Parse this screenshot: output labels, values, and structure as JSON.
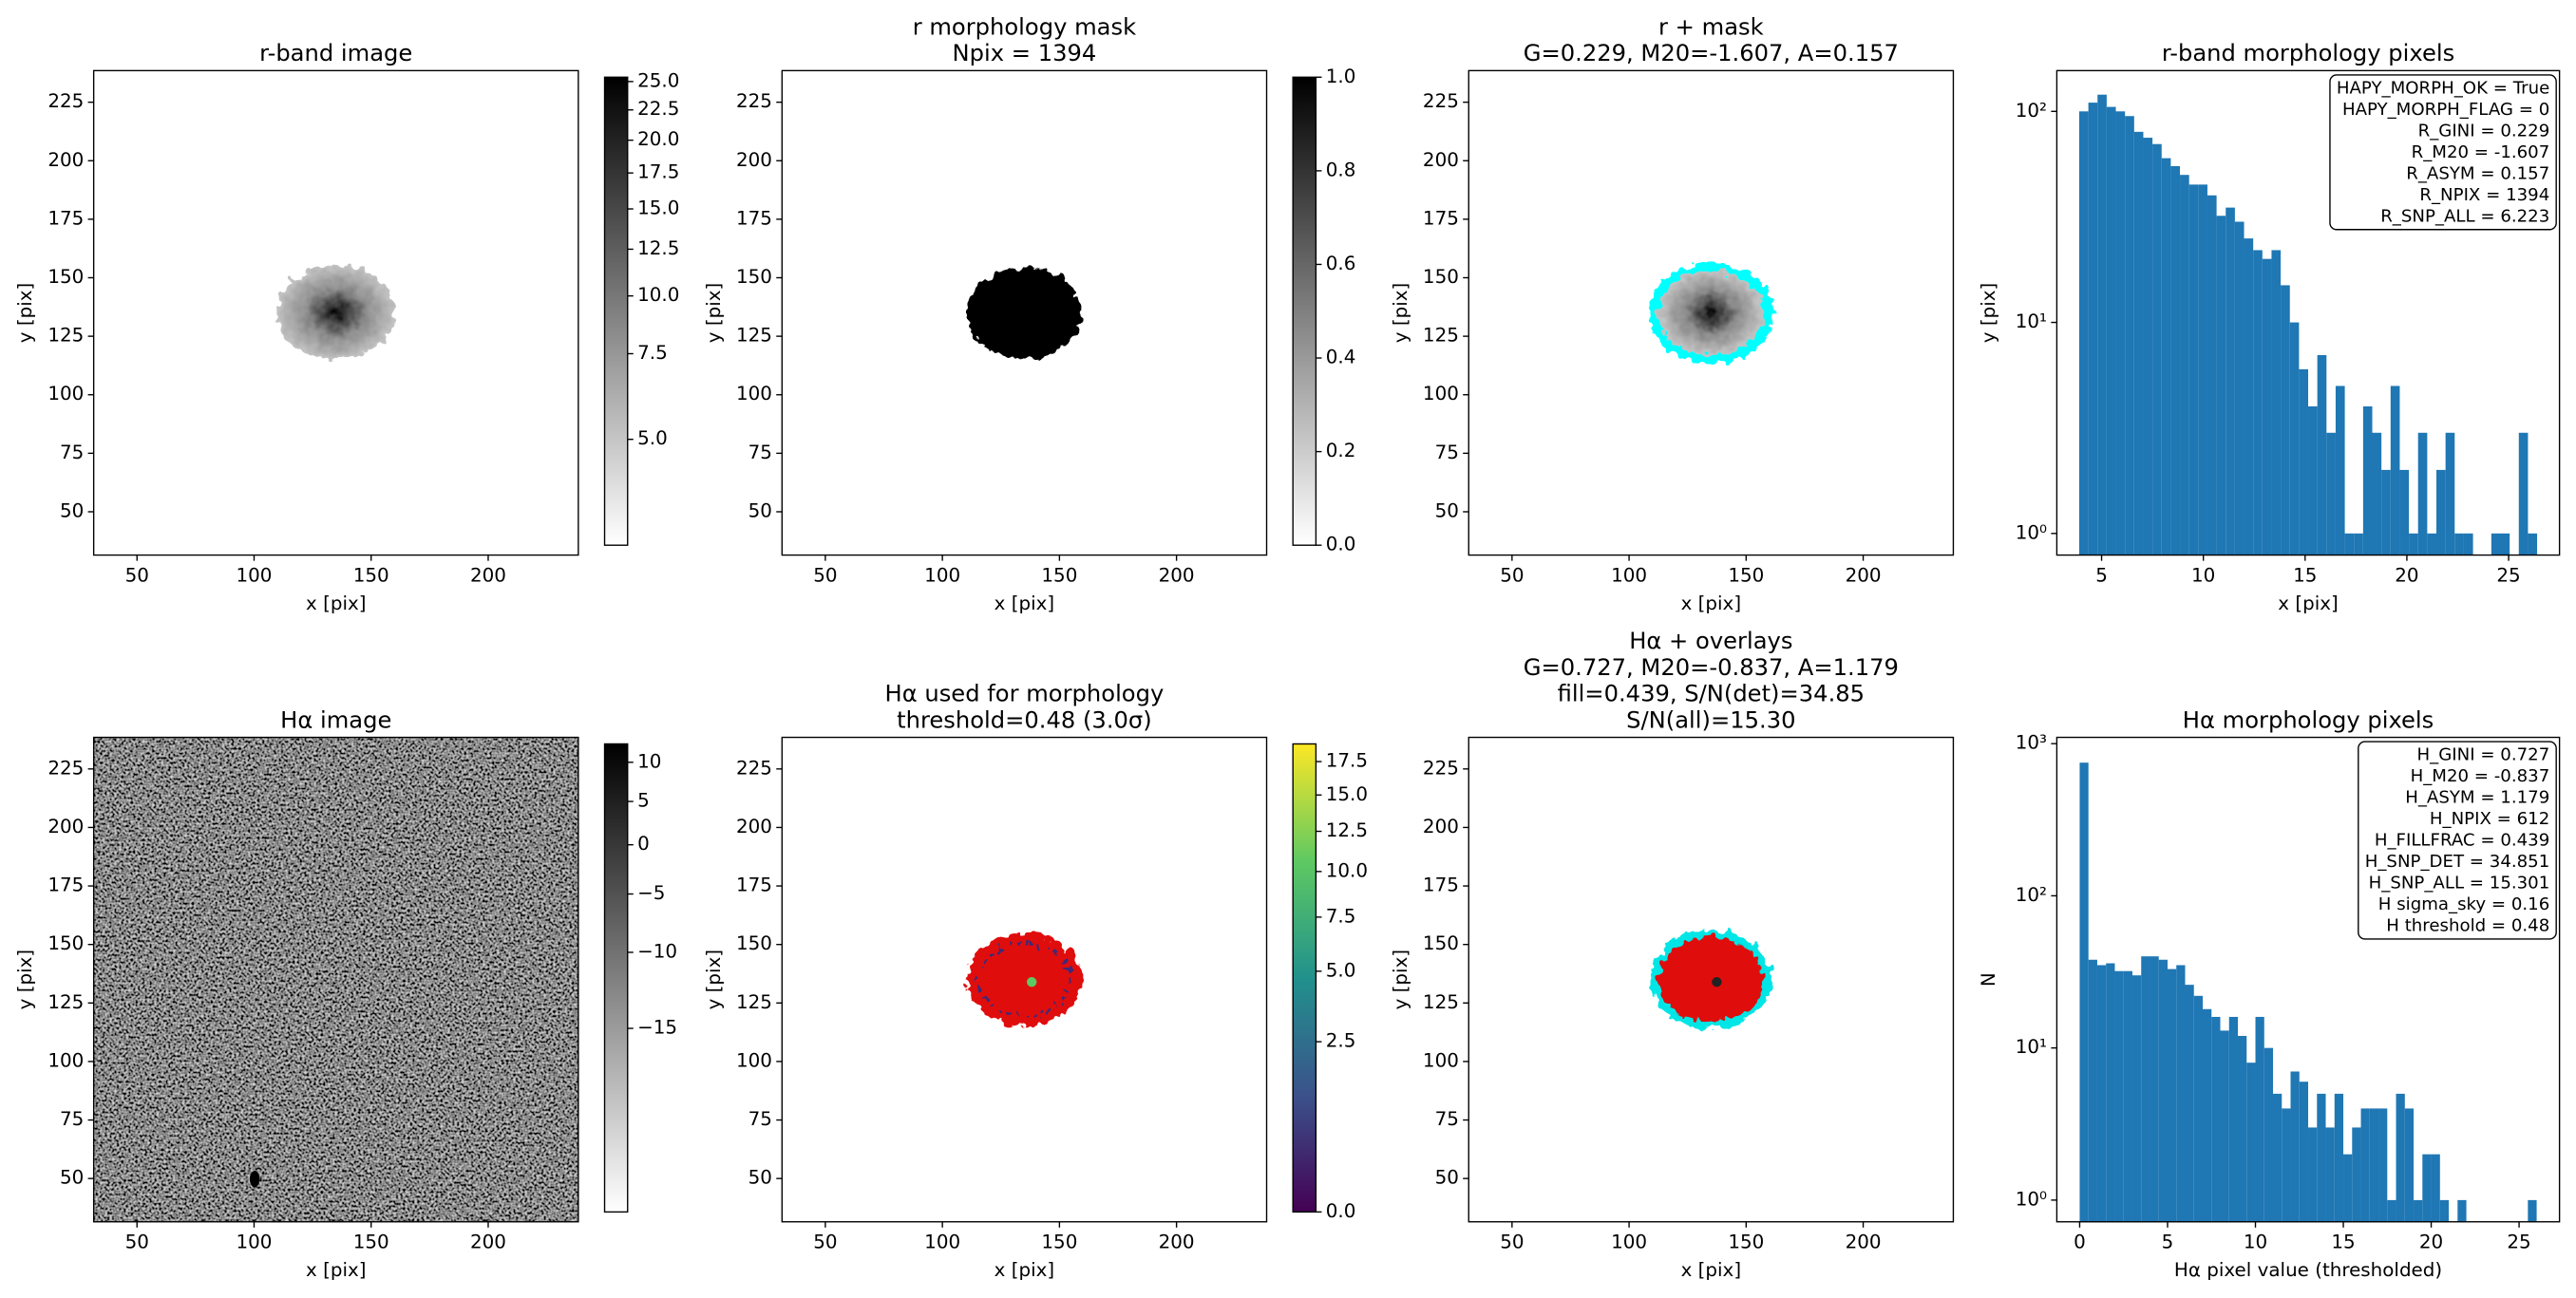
{
  "chart_data": [
    {
      "type": "image",
      "title": [
        "r-band image"
      ],
      "xlabel": "x [pix]",
      "ylabel": "y [pix]",
      "xlim": [
        31.5,
        238.5
      ],
      "ylim": [
        31.5,
        238.5
      ],
      "xticks": [
        50,
        100,
        150,
        200
      ],
      "yticks": [
        50,
        75,
        100,
        125,
        150,
        175,
        200,
        225
      ],
      "colorbar": {
        "cmap": "gray_r",
        "stretch": "sqrt",
        "lim": [
          3.9,
          25.4
        ],
        "ticks": [
          {
            "value": 5,
            "label": "5.0"
          },
          7.5,
          {
            "value": 10,
            "label": "10.0"
          },
          12.5,
          {
            "value": 15,
            "label": "15.0"
          },
          17.5,
          {
            "value": 20,
            "label": "20.0"
          },
          22.5,
          {
            "value": 25,
            "label": "25.0"
          }
        ]
      }
    },
    {
      "type": "image",
      "title": [
        "r morphology mask",
        "Npix = 1394"
      ],
      "xlabel": "x [pix]",
      "ylabel": "y [pix]",
      "xlim": [
        31.5,
        238.5
      ],
      "ylim": [
        31.5,
        238.5
      ],
      "xticks": [
        50,
        100,
        150,
        200
      ],
      "yticks": [
        50,
        75,
        100,
        125,
        150,
        175,
        200,
        225
      ],
      "colorbar": {
        "cmap": "gray_r",
        "stretch": "linear",
        "lim": [
          0,
          1
        ],
        "ticks": [
          {
            "value": 0,
            "label": "0.0"
          },
          0.2,
          0.4,
          0.6,
          0.8,
          {
            "value": 1,
            "label": "1.0"
          }
        ]
      }
    },
    {
      "type": "image",
      "title": [
        "r + mask",
        "G=0.229, M20=-1.607, A=0.157"
      ],
      "xlabel": "x [pix]",
      "ylabel": "y [pix]",
      "xlim": [
        31.5,
        238.5
      ],
      "ylim": [
        31.5,
        238.5
      ],
      "xticks": [
        50,
        100,
        150,
        200
      ],
      "yticks": [
        50,
        75,
        100,
        125,
        150,
        175,
        200,
        225
      ]
    },
    {
      "type": "histogram",
      "title": [
        "r-band morphology pixels"
      ],
      "xlabel": "x [pix]",
      "ylabel": "y [pix]",
      "xlim": [
        2.8,
        27.5
      ],
      "ylim": [
        0.79,
        156
      ],
      "log_y": true,
      "xticks": [
        5,
        10,
        15,
        20,
        25
      ],
      "yticks": [
        {
          "value": 1,
          "label": "10⁰"
        },
        {
          "value": 10,
          "label": "10¹"
        },
        {
          "value": 100,
          "label": "10²"
        }
      ],
      "color": "#1f77b4",
      "bins": [
        3.9,
        4.35,
        4.8,
        5.25,
        5.7,
        6.15,
        6.6,
        7.05,
        7.5,
        7.95,
        8.4,
        8.85,
        9.3,
        9.75,
        10.2,
        10.65,
        11.1,
        11.55,
        12,
        12.45,
        12.9,
        13.35,
        13.8,
        14.25,
        14.7,
        15.15,
        15.6,
        16.05,
        16.5,
        16.95,
        17.4,
        17.85,
        18.3,
        18.75,
        19.2,
        19.65,
        20.1,
        20.55,
        21,
        21.45,
        21.9,
        22.35,
        22.8,
        23.25,
        23.7,
        24.15,
        24.6,
        25.05,
        25.5,
        25.95,
        26.4
      ],
      "counts": [
        100,
        110,
        120,
        105,
        100,
        95,
        80,
        75,
        70,
        60,
        55,
        50,
        45,
        45,
        40,
        32,
        35,
        30,
        25,
        22,
        20,
        22,
        15,
        10,
        6,
        4,
        7,
        3,
        5,
        1,
        1,
        4,
        3,
        2,
        5,
        2,
        1,
        3,
        1,
        2,
        3,
        1,
        1,
        0,
        0,
        1,
        1,
        0,
        3,
        1
      ],
      "annotation": [
        "HAPY_MORPH_OK = True",
        "HAPY_MORPH_FLAG = 0",
        "R_GINI = 0.229",
        "R_M20 = -1.607",
        "R_ASYM = 0.157",
        "R_NPIX = 1394",
        "R_SNP_ALL = 6.223"
      ]
    },
    {
      "type": "image",
      "title": [
        "Hα image"
      ],
      "xlabel": "x [pix]",
      "ylabel": "y [pix]",
      "xlim": [
        31.5,
        238.5
      ],
      "ylim": [
        31.5,
        238.5
      ],
      "xticks": [
        50,
        100,
        150,
        200
      ],
      "yticks": [
        50,
        75,
        100,
        125,
        150,
        175,
        200,
        225
      ],
      "colorbar": {
        "cmap": "gray_r",
        "stretch": "sqrt",
        "lim": [
          -20,
          12.5
        ],
        "ticks": [
          {
            "value": -15,
            "label": "−15"
          },
          {
            "value": -10,
            "label": "−10"
          },
          {
            "value": -5,
            "label": "−5"
          },
          0,
          5,
          10
        ]
      }
    },
    {
      "type": "image",
      "title": [
        "Hα used for morphology",
        "threshold=0.48 (3.0σ)"
      ],
      "xlabel": "x [pix]",
      "ylabel": "y [pix]",
      "xlim": [
        31.5,
        238.5
      ],
      "ylim": [
        31.5,
        238.5
      ],
      "xticks": [
        50,
        100,
        150,
        200
      ],
      "yticks": [
        50,
        75,
        100,
        125,
        150,
        175,
        200,
        225
      ],
      "colorbar": {
        "cmap": "viridis",
        "stretch": "sqrt",
        "lim": [
          0,
          18.9
        ],
        "ticks": [
          {
            "value": 0,
            "label": "0.0"
          },
          2.5,
          {
            "value": 5,
            "label": "5.0"
          },
          7.5,
          {
            "value": 10,
            "label": "10.0"
          },
          12.5,
          {
            "value": 15,
            "label": "15.0"
          },
          17.5
        ]
      }
    },
    {
      "type": "image",
      "title": [
        "Hα + overlays",
        "G=0.727, M20=-0.837, A=1.179",
        "fill=0.439, S/N(det)=34.85",
        "S/N(all)=15.30"
      ],
      "xlabel": "x [pix]",
      "ylabel": "y [pix]",
      "xlim": [
        31.5,
        238.5
      ],
      "ylim": [
        31.5,
        238.5
      ],
      "xticks": [
        50,
        100,
        150,
        200
      ],
      "yticks": [
        50,
        75,
        100,
        125,
        150,
        175,
        200,
        225
      ]
    },
    {
      "type": "histogram",
      "title": [
        "Hα morphology pixels"
      ],
      "xlabel": "Hα pixel value (thresholded)",
      "ylabel": "N",
      "xlim": [
        -1.3,
        27.3
      ],
      "ylim": [
        0.72,
        1100
      ],
      "log_y": true,
      "xticks": [
        0,
        5,
        10,
        15,
        20,
        25
      ],
      "yticks": [
        {
          "value": 1,
          "label": "10⁰"
        },
        {
          "value": 10,
          "label": "10¹"
        },
        {
          "value": 100,
          "label": "10²"
        },
        {
          "value": 1000,
          "label": "10³"
        }
      ],
      "color": "#1f77b4",
      "bins": [
        0,
        0.5,
        1,
        1.5,
        2,
        2.5,
        3,
        3.5,
        4,
        4.5,
        5,
        5.5,
        6,
        6.5,
        7,
        7.5,
        8,
        8.5,
        9,
        9.5,
        10,
        10.5,
        11,
        11.5,
        12,
        12.5,
        13,
        13.5,
        14,
        14.5,
        15,
        15.5,
        16,
        16.5,
        17,
        17.5,
        18,
        18.5,
        19,
        19.5,
        20,
        20.5,
        21,
        21.5,
        22,
        22.5,
        23,
        23.5,
        24,
        24.5,
        25,
        25.5,
        26
      ],
      "counts": [
        750,
        38,
        35,
        36,
        32,
        32,
        30,
        40,
        40,
        38,
        33,
        35,
        26,
        22,
        18,
        16,
        13,
        16,
        12,
        8,
        16,
        10,
        5,
        4,
        7,
        6,
        3,
        5,
        3,
        5,
        2,
        3,
        4,
        4,
        4,
        1,
        5,
        4,
        1,
        2,
        2,
        1,
        0,
        1,
        0,
        0,
        0,
        0,
        0,
        0,
        0,
        1
      ],
      "annotation": [
        "H_GINI = 0.727",
        "H_M20 = -0.837",
        "H_ASYM = 1.179",
        "H_NPIX = 612",
        "H_FILLFRAC = 0.439",
        "H_SNP_DET = 34.851",
        "H_SNP_ALL = 15.301",
        "H sigma_sky = 0.16",
        "H threshold = 0.48"
      ]
    }
  ]
}
